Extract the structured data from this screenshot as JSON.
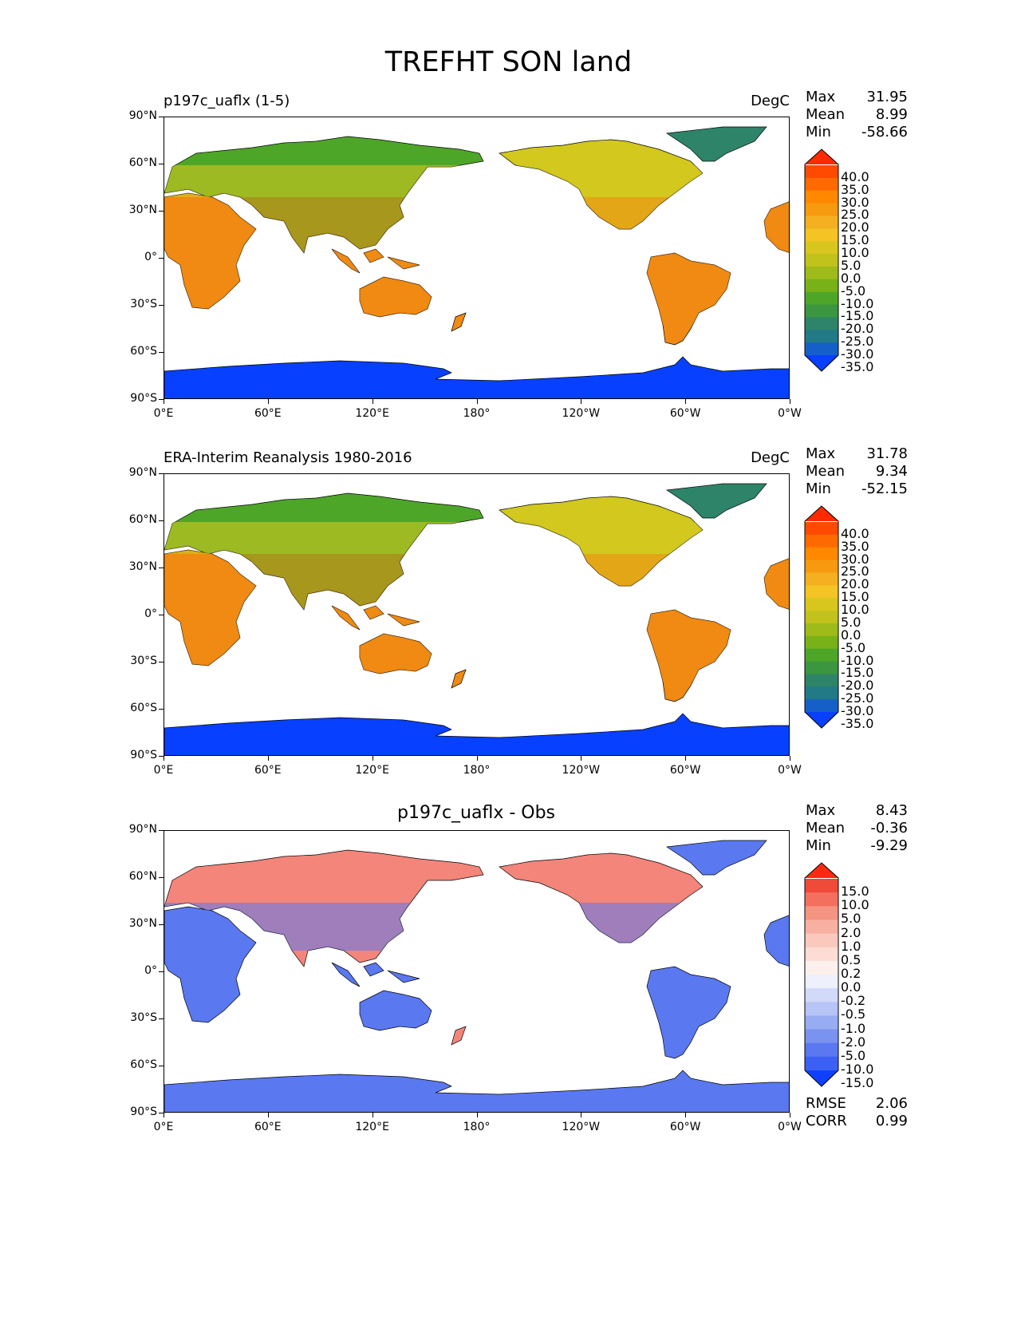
{
  "figure_title": "TREFHT SON land",
  "colors": {
    "land_warm": "#f08a12",
    "land_mid": "#d2c81e",
    "land_cold": "#4ea628",
    "ice": "#0840ff",
    "diff_pos": "#f4857a",
    "diff_neg": "#5a78f0"
  },
  "x_ticks": [
    "0°E",
    "60°E",
    "120°E",
    "180°",
    "120°W",
    "60°W",
    "0°W"
  ],
  "y_ticks": [
    "90°N",
    "60°N",
    "30°N",
    "0°",
    "30°S",
    "60°S",
    "90°S"
  ],
  "panels": [
    {
      "title": "p197c_uaflx (1-5)",
      "units": "DegC",
      "stats": {
        "max_label": "Max",
        "max": "31.95",
        "mean_label": "Mean",
        "mean": "8.99",
        "min_label": "Min",
        "min": "-58.66"
      },
      "colorbar": [
        "40.0",
        "35.0",
        "30.0",
        "25.0",
        "20.0",
        "15.0",
        "10.0",
        "5.0",
        "0.0",
        "-5.0",
        "-10.0",
        "-15.0",
        "-20.0",
        "-25.0",
        "-30.0",
        "-35.0"
      ],
      "colorbar_colors": [
        "#ff2a00",
        "#ff4a00",
        "#ff6a00",
        "#ff8800",
        "#f79a10",
        "#f4b020",
        "#f3c424",
        "#d8c61e",
        "#c2c21c",
        "#9ebb1a",
        "#79b218",
        "#4ea628",
        "#3c9640",
        "#2e8468",
        "#227a86",
        "#1560c8",
        "#0840ff"
      ]
    },
    {
      "title": "ERA-Interim Reanalysis 1980-2016",
      "units": "DegC",
      "stats": {
        "max_label": "Max",
        "max": "31.78",
        "mean_label": "Mean",
        "mean": "9.34",
        "min_label": "Min",
        "min": "-52.15"
      },
      "colorbar": [
        "40.0",
        "35.0",
        "30.0",
        "25.0",
        "20.0",
        "15.0",
        "10.0",
        "5.0",
        "0.0",
        "-5.0",
        "-10.0",
        "-15.0",
        "-20.0",
        "-25.0",
        "-30.0",
        "-35.0"
      ],
      "colorbar_colors": [
        "#ff2a00",
        "#ff4a00",
        "#ff6a00",
        "#ff8800",
        "#f79a10",
        "#f4b020",
        "#f3c424",
        "#d8c61e",
        "#c2c21c",
        "#9ebb1a",
        "#79b218",
        "#4ea628",
        "#3c9640",
        "#2e8468",
        "#227a86",
        "#1560c8",
        "#0840ff"
      ]
    },
    {
      "title": "p197c_uaflx - Obs",
      "units": "",
      "stats": {
        "max_label": "Max",
        "max": "8.43",
        "mean_label": "Mean",
        "mean": "-0.36",
        "min_label": "Min",
        "min": "-9.29"
      },
      "extra_stats": {
        "rmse_label": "RMSE",
        "rmse": "2.06",
        "corr_label": "CORR",
        "corr": "0.99"
      },
      "colorbar": [
        "15.0",
        "10.0",
        "5.0",
        "2.0",
        "1.0",
        "0.5",
        "0.2",
        "0.0",
        "-0.2",
        "-0.5",
        "-1.0",
        "-2.0",
        "-5.0",
        "-10.0",
        "-15.0"
      ],
      "colorbar_colors": [
        "#ff2a10",
        "#f04a38",
        "#f4705e",
        "#f69482",
        "#f8b0a2",
        "#fac8bc",
        "#fcdcd4",
        "#fdf0ec",
        "#eef0fc",
        "#d2dafa",
        "#b6c4f6",
        "#98acf4",
        "#7a92f0",
        "#5a78f0",
        "#3c60f4",
        "#1040ff"
      ]
    }
  ]
}
